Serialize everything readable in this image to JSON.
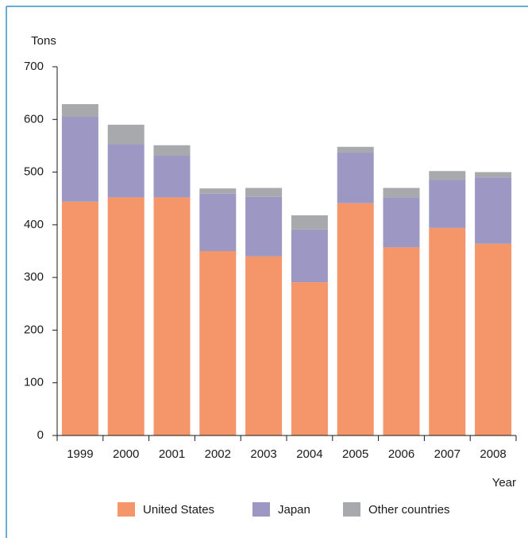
{
  "chart_data": {
    "type": "stacked_bar",
    "ylabel": "Tons",
    "xlabel": "Year",
    "categories": [
      "1999",
      "2000",
      "2001",
      "2002",
      "2003",
      "2004",
      "2005",
      "2006",
      "2007",
      "2008"
    ],
    "series": [
      {
        "name": "United States",
        "color": "#f4956a",
        "values": [
          444,
          452,
          452,
          350,
          340,
          291,
          441,
          357,
          394,
          364
        ]
      },
      {
        "name": "Japan",
        "color": "#9d97c4",
        "values": [
          161,
          101,
          79,
          109,
          113,
          100,
          96,
          95,
          91,
          126
        ]
      },
      {
        "name": "Other countries",
        "color": "#a7a9ac",
        "values": [
          24,
          37,
          20,
          10,
          17,
          27,
          11,
          18,
          17,
          10
        ]
      }
    ],
    "ylim": [
      0,
      700
    ],
    "yticks": [
      0,
      100,
      200,
      300,
      400,
      500,
      600,
      700
    ],
    "legend": "bottom"
  }
}
